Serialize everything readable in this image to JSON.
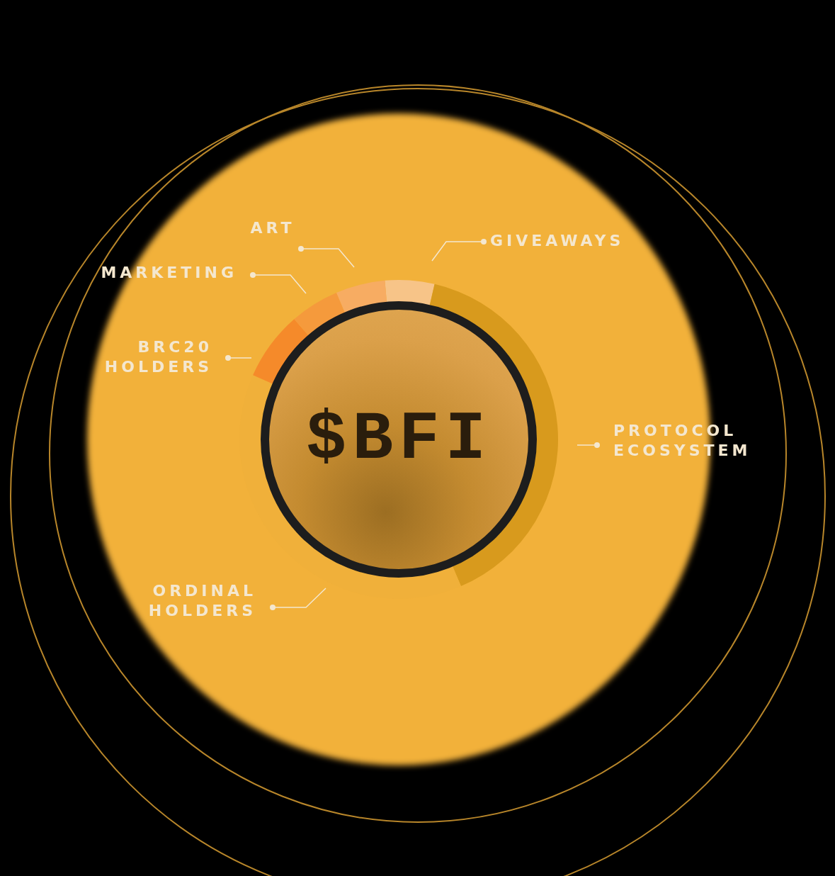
{
  "chart_data": {
    "type": "doughnut",
    "title": "$BFI",
    "categories": [
      "GIVEAWAYS",
      "PROTOCOL ECOSYSTEM",
      "ORDINAL HOLDERS",
      "BRC20 HOLDERS",
      "MARKETING",
      "ART"
    ],
    "values": [
      5,
      40,
      38,
      7,
      5,
      5
    ],
    "colors": [
      "#f7c488",
      "#d89a1d",
      "#f0b03a",
      "#f58a2a",
      "#f59a3c",
      "#f7ac62"
    ]
  }
}
